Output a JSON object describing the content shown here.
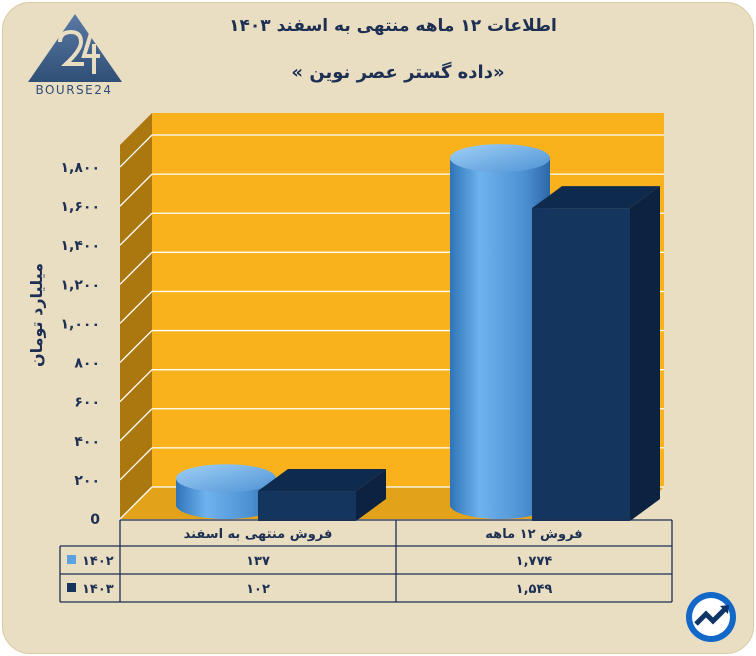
{
  "title": "اطلاعات ۱۲ ماهه منتهی به اسفند ۱۴۰۳",
  "subtitle": "«داده گستر عصر نوین »",
  "logo": {
    "text": "BOURSE24",
    "icon": "bourse24-logo-icon"
  },
  "badge_icon": "trend-arrow-icon",
  "colors": {
    "panel": "#f9b21b",
    "wall": "#ab7810",
    "series_1402": "#5aa3e0",
    "series_1403": "#14365e",
    "background": "#e9dec2",
    "text": "#1d2f52"
  },
  "chart_data": {
    "type": "bar",
    "title": "اطلاعات ۱۲ ماهه منتهی به اسفند ۱۴۰۳",
    "ylabel": "میلیارد تومان",
    "ylim": [
      0,
      1800
    ],
    "yticks": [
      0,
      200,
      400,
      600,
      800,
      1000,
      1200,
      1400,
      1600,
      1800
    ],
    "ytick_labels": [
      "0",
      "۲۰۰",
      "۴۰۰",
      "۶۰۰",
      "۸۰۰",
      "۱,۰۰۰",
      "۱,۲۰۰",
      "۱,۴۰۰",
      "۱,۶۰۰",
      "۱,۸۰۰"
    ],
    "categories": [
      "فروش منتهی به  اسفند",
      "فروش ۱۲  ماهه"
    ],
    "grid": true,
    "legend": "data-table-left",
    "series": [
      {
        "name": "۱۴۰۲",
        "shape": "cylinder",
        "color": "#5aa3e0",
        "values": [
          137,
          1774
        ],
        "labels": [
          "۱۳۷",
          "۱,۷۷۴"
        ]
      },
      {
        "name": "۱۴۰۳",
        "shape": "box",
        "color": "#14365e",
        "values": [
          102,
          1549
        ],
        "labels": [
          "۱۰۲",
          "۱,۵۴۹"
        ]
      }
    ]
  }
}
